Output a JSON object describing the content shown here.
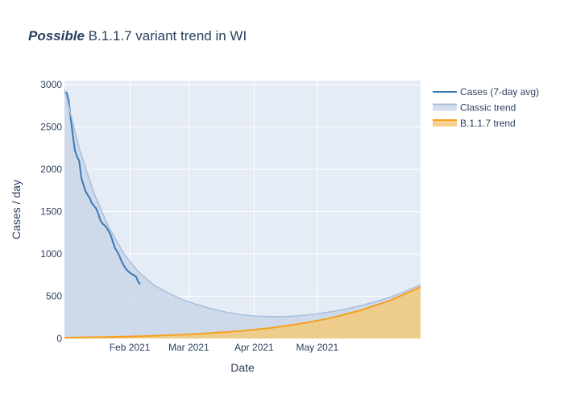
{
  "colors": {
    "plot_bg": "#e5ecf6",
    "grid": "#ffffff",
    "text": "#2a3f5f",
    "cases_line": "#3a7ab5",
    "classic_line": "#a8bfdc",
    "classic_fill": "#c6d3e5",
    "b117_line": "#f5a01f",
    "b117_fill": "#f3c97a"
  },
  "chart_data": {
    "type": "area",
    "title_bold": "Possible",
    "title_rest": " B.1.1.7 variant trend in WI",
    "xlabel": "Date",
    "ylabel": "Cases / day",
    "x_range": [
      "2021-01-01",
      "2021-06-19"
    ],
    "ylim": [
      0,
      3050
    ],
    "y_ticks": [
      0,
      500,
      1000,
      1500,
      2000,
      2500,
      3000
    ],
    "x_ticks": [
      {
        "date": "2021-02-01",
        "label": "Feb 2021"
      },
      {
        "date": "2021-03-01",
        "label": "Mar 2021"
      },
      {
        "date": "2021-04-01",
        "label": "Apr 2021"
      },
      {
        "date": "2021-05-01",
        "label": "May 2021"
      }
    ],
    "grid": true,
    "legend_position": "top-right",
    "series": [
      {
        "name": "Cases (7-day avg)",
        "kind": "line",
        "points": [
          [
            "2021-01-01",
            2900
          ],
          [
            "2021-01-02",
            2910
          ],
          [
            "2021-01-03",
            2820
          ],
          [
            "2021-01-04",
            2600
          ],
          [
            "2021-01-05",
            2400
          ],
          [
            "2021-01-06",
            2220
          ],
          [
            "2021-01-07",
            2150
          ],
          [
            "2021-01-08",
            2100
          ],
          [
            "2021-01-09",
            1900
          ],
          [
            "2021-01-10",
            1820
          ],
          [
            "2021-01-11",
            1740
          ],
          [
            "2021-01-12",
            1700
          ],
          [
            "2021-01-13",
            1660
          ],
          [
            "2021-01-14",
            1600
          ],
          [
            "2021-01-15",
            1570
          ],
          [
            "2021-01-16",
            1540
          ],
          [
            "2021-01-17",
            1480
          ],
          [
            "2021-01-18",
            1400
          ],
          [
            "2021-01-19",
            1360
          ],
          [
            "2021-01-20",
            1340
          ],
          [
            "2021-01-21",
            1310
          ],
          [
            "2021-01-22",
            1270
          ],
          [
            "2021-01-23",
            1220
          ],
          [
            "2021-01-24",
            1140
          ],
          [
            "2021-01-25",
            1070
          ],
          [
            "2021-01-26",
            1030
          ],
          [
            "2021-01-27",
            980
          ],
          [
            "2021-01-28",
            920
          ],
          [
            "2021-01-29",
            870
          ],
          [
            "2021-01-30",
            830
          ],
          [
            "2021-01-31",
            800
          ],
          [
            "2021-02-01",
            780
          ],
          [
            "2021-02-02",
            760
          ],
          [
            "2021-02-03",
            750
          ],
          [
            "2021-02-04",
            730
          ],
          [
            "2021-02-05",
            670
          ],
          [
            "2021-02-06",
            640
          ]
        ]
      },
      {
        "name": "Classic trend",
        "kind": "area",
        "points": [
          [
            "2021-01-01",
            2950
          ],
          [
            "2021-01-08",
            2250
          ],
          [
            "2021-01-15",
            1720
          ],
          [
            "2021-01-22",
            1320
          ],
          [
            "2021-01-29",
            1010
          ],
          [
            "2021-02-05",
            790
          ],
          [
            "2021-02-12",
            640
          ],
          [
            "2021-02-19",
            540
          ],
          [
            "2021-02-26",
            460
          ],
          [
            "2021-03-05",
            400
          ],
          [
            "2021-03-12",
            350
          ],
          [
            "2021-03-19",
            310
          ],
          [
            "2021-03-26",
            280
          ],
          [
            "2021-04-02",
            265
          ],
          [
            "2021-04-09",
            260
          ],
          [
            "2021-04-16",
            260
          ],
          [
            "2021-04-23",
            270
          ],
          [
            "2021-04-30",
            290
          ],
          [
            "2021-05-07",
            315
          ],
          [
            "2021-05-14",
            345
          ],
          [
            "2021-05-21",
            385
          ],
          [
            "2021-05-28",
            430
          ],
          [
            "2021-06-04",
            485
          ],
          [
            "2021-06-11",
            550
          ],
          [
            "2021-06-19",
            635
          ]
        ]
      },
      {
        "name": "B.1.1.7 trend",
        "kind": "area",
        "points": [
          [
            "2021-01-01",
            10
          ],
          [
            "2021-01-15",
            15
          ],
          [
            "2021-01-29",
            22
          ],
          [
            "2021-02-12",
            32
          ],
          [
            "2021-02-26",
            45
          ],
          [
            "2021-03-12",
            65
          ],
          [
            "2021-03-26",
            90
          ],
          [
            "2021-04-09",
            125
          ],
          [
            "2021-04-23",
            175
          ],
          [
            "2021-05-07",
            240
          ],
          [
            "2021-05-21",
            330
          ],
          [
            "2021-06-04",
            445
          ],
          [
            "2021-06-19",
            610
          ]
        ]
      }
    ]
  }
}
